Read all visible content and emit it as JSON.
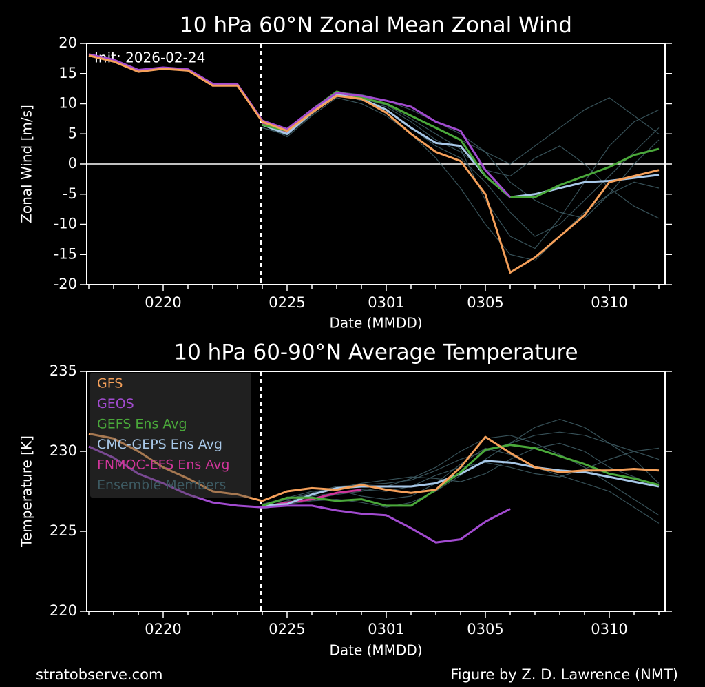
{
  "chart_data": [
    {
      "type": "line",
      "title": "10 hPa  60°N   Zonal Mean Zonal Wind",
      "x_label": "Date (MMDD)",
      "y_label": "Zonal  Wind  [m/s]",
      "annotation": "Init: 2026-02-24",
      "categories": [
        null,
        null,
        null,
        "0220",
        null,
        null,
        null,
        null,
        "0225",
        null,
        null,
        null,
        "0301",
        null,
        null,
        null,
        "0305",
        null,
        null,
        null,
        null,
        "0310",
        null,
        null
      ],
      "ylim": [
        -20,
        20
      ],
      "yticks": [
        -20,
        -15,
        -10,
        -5,
        0,
        5,
        10,
        15,
        20
      ],
      "zero_line": true,
      "series": [
        {
          "color": "#f5a05a",
          "values": [
            18,
            17,
            15.3,
            15.8,
            15.5,
            13,
            13,
            7,
            5.5,
            8.5,
            11.3,
            10.8,
            8.5,
            5,
            2,
            0.5,
            -5,
            -18,
            -15.5,
            -12,
            -8.5,
            -3,
            -2,
            -1
          ]
        },
        {
          "color": "#a24bd0",
          "values": [
            18.2,
            17.3,
            15.6,
            16,
            15.7,
            13.3,
            13.2,
            7.2,
            5.8,
            9,
            11.8,
            11.3,
            10.5,
            9.5,
            7,
            5.5,
            -1,
            -5.5,
            null,
            null,
            null,
            null,
            null,
            null
          ]
        },
        {
          "color": "#4aa83a",
          "values": [
            null,
            null,
            null,
            null,
            null,
            null,
            null,
            6.5,
            5.5,
            9,
            12,
            11,
            10,
            8,
            6,
            4,
            -2,
            -5.5,
            -5.5,
            -3.5,
            -2,
            -0.5,
            1.5,
            2.5
          ]
        },
        {
          "color": "#a8c8e8",
          "values": [
            null,
            null,
            null,
            null,
            null,
            null,
            null,
            6.5,
            5,
            8.5,
            11.5,
            10.8,
            9,
            6,
            3.5,
            3,
            -2,
            -5.5,
            -5,
            -4,
            -3,
            -2.8,
            -2.3,
            -1.8
          ]
        },
        {
          "color": "#d0359a",
          "values": [
            null,
            null,
            null,
            null,
            null,
            null,
            null,
            6.8,
            5.2,
            8.8,
            11.8,
            11,
            null,
            null,
            null,
            null,
            null,
            null,
            null,
            null,
            null,
            null,
            null,
            null
          ]
        },
        {
          "color": "#3d5a62",
          "members": [
            [
              null,
              null,
              null,
              null,
              null,
              null,
              null,
              6,
              5,
              8.5,
              12,
              11,
              9,
              6,
              3,
              1,
              -3,
              -8,
              -12,
              -10,
              -6,
              -2,
              2,
              6
            ],
            [
              null,
              null,
              null,
              null,
              null,
              null,
              null,
              7,
              5.5,
              9,
              11.5,
              11,
              10,
              8,
              6,
              4,
              2,
              0,
              3,
              6,
              9,
              11,
              8,
              5
            ],
            [
              null,
              null,
              null,
              null,
              null,
              null,
              null,
              6.5,
              4.5,
              8,
              11,
              10,
              8,
              5,
              1,
              -4,
              -10,
              -15,
              -16,
              -12,
              -8,
              -5,
              -3,
              -4
            ],
            [
              null,
              null,
              null,
              null,
              null,
              null,
              null,
              7,
              5,
              9,
              12,
              11.5,
              10.5,
              9,
              7,
              5,
              2,
              -3,
              -6,
              -8,
              -9,
              -5,
              0,
              4
            ],
            [
              null,
              null,
              null,
              null,
              null,
              null,
              null,
              6,
              4.8,
              8.2,
              11.8,
              10.5,
              9.5,
              7,
              4,
              2,
              -1,
              -2,
              1,
              3,
              0,
              -4,
              -7,
              -9
            ],
            [
              null,
              null,
              null,
              null,
              null,
              null,
              null,
              6.8,
              5.2,
              8.7,
              11.2,
              10.8,
              9.8,
              7.5,
              5,
              2.5,
              -6,
              -12,
              -14,
              -9,
              -3,
              3,
              7,
              9
            ]
          ]
        }
      ]
    },
    {
      "type": "line",
      "title": "10 hPa  60-90°N Average Temperature",
      "x_label": "Date (MMDD)",
      "y_label": "Temperature  [K]",
      "legend": "upper left",
      "categories": [
        null,
        null,
        null,
        "0220",
        null,
        null,
        null,
        null,
        "0225",
        null,
        null,
        null,
        "0301",
        null,
        null,
        null,
        "0305",
        null,
        null,
        null,
        null,
        "0310",
        null,
        null
      ],
      "ylim": [
        220,
        235
      ],
      "yticks": [
        220,
        225,
        230,
        235
      ],
      "series": [
        {
          "name": "GFS",
          "color": "#f5a05a",
          "values": [
            231.1,
            230.8,
            230,
            229,
            228.3,
            227.5,
            227.3,
            226.9,
            227.5,
            227.7,
            227.6,
            227.9,
            227.6,
            227.4,
            227.6,
            229,
            230.9,
            229.9,
            229,
            228.7,
            228.8,
            228.8,
            228.9,
            228.8
          ]
        },
        {
          "name": "GEOS",
          "color": "#a24bd0",
          "values": [
            230.3,
            229.6,
            228.6,
            228,
            227.3,
            226.8,
            226.6,
            226.5,
            226.6,
            226.6,
            226.3,
            226.1,
            226,
            225.2,
            224.3,
            224.5,
            225.6,
            226.4,
            null,
            null,
            null,
            null,
            null,
            null
          ]
        },
        {
          "name": "GEFS Ens Avg",
          "color": "#4aa83a",
          "values": [
            null,
            null,
            null,
            null,
            null,
            null,
            null,
            226.6,
            227.1,
            227.1,
            226.9,
            227,
            226.6,
            226.6,
            227.6,
            228.7,
            230.1,
            230.4,
            230.2,
            229.7,
            229.2,
            228.6,
            228.3,
            227.9
          ]
        },
        {
          "name": "CMC-GEPS Ens Avg",
          "color": "#a8c8e8",
          "values": [
            null,
            null,
            null,
            null,
            null,
            null,
            null,
            226.6,
            226.7,
            227.3,
            227.7,
            227.8,
            227.8,
            227.8,
            228,
            228.6,
            229.4,
            229.3,
            229,
            228.8,
            228.7,
            228.4,
            228.1,
            227.8
          ]
        },
        {
          "name": "FNMOC-EFS Ens Avg",
          "color": "#d0359a",
          "values": [
            null,
            null,
            null,
            null,
            null,
            null,
            null,
            226.5,
            226.8,
            227,
            227.4,
            227.6,
            null,
            null,
            null,
            null,
            null,
            null,
            null,
            null,
            null,
            null,
            null,
            null
          ]
        },
        {
          "name": "Ensemble Members",
          "color": "#3d5a62",
          "members": [
            [
              null,
              null,
              null,
              null,
              null,
              null,
              null,
              226.5,
              226.8,
              227,
              227.3,
              227.5,
              227.8,
              228.3,
              229,
              230,
              230.8,
              231,
              230.5,
              229.8,
              229,
              228,
              227,
              226
            ],
            [
              null,
              null,
              null,
              null,
              null,
              null,
              null,
              226.6,
              227,
              227.4,
              227.8,
              227.9,
              228,
              228.2,
              228.8,
              229.5,
              230,
              230.5,
              231,
              231.2,
              231,
              230.5,
              230,
              229.5
            ],
            [
              null,
              null,
              null,
              null,
              null,
              null,
              null,
              226.4,
              226.7,
              226.9,
              227,
              226.8,
              226.5,
              226.8,
              227.5,
              228.5,
              229.5,
              230.5,
              231.5,
              232,
              231.5,
              230.5,
              229.5,
              228
            ],
            [
              null,
              null,
              null,
              null,
              null,
              null,
              null,
              226.7,
              227.1,
              227.5,
              227.6,
              227.2,
              227,
              227.2,
              228,
              229.2,
              230.2,
              229.8,
              229,
              228.5,
              228,
              227.5,
              226.5,
              225.5
            ],
            [
              null,
              null,
              null,
              null,
              null,
              null,
              null,
              226.5,
              226.9,
              227.2,
              227.4,
              227.6,
              227.5,
              227.8,
              228.5,
              229,
              229.3,
              229,
              228.6,
              228.4,
              228.9,
              229.5,
              230,
              230.2
            ],
            [
              null,
              null,
              null,
              null,
              null,
              null,
              null,
              226.6,
              227,
              227.3,
              227.7,
              228,
              228.2,
              228.4,
              228.3,
              228.1,
              228.6,
              229.5,
              230.2,
              230.5,
              230,
              229,
              228.4,
              227.8
            ]
          ]
        }
      ]
    }
  ],
  "footer": {
    "left": "stratobserve.com",
    "right": "Figure by Z. D. Lawrence (NMT)"
  }
}
